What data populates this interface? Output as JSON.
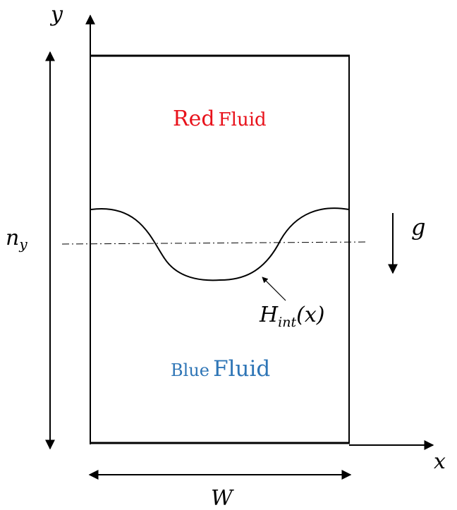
{
  "labels": {
    "y_axis": "y",
    "x_axis": "x",
    "height_main": "n",
    "height_sub": "y",
    "gravity": "g",
    "width": "W",
    "interface_main": "H",
    "interface_sub": "int",
    "interface_arg": "(x)"
  },
  "regions": {
    "top_word1": "Red",
    "top_word2": "Fluid",
    "bottom_word1": "Blue",
    "bottom_word2": "Fluid"
  },
  "colors": {
    "red_fluid": "#e8121b",
    "blue_fluid": "#2e75b6",
    "lines": "#000000"
  }
}
